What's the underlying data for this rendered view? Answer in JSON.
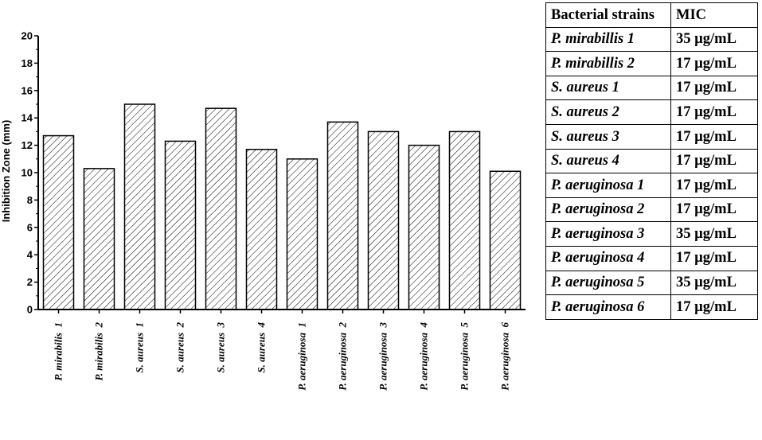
{
  "chart_data": {
    "type": "bar",
    "title": "",
    "xlabel": "",
    "ylabel": "Inhibition Zone (mm)",
    "ylim": [
      0,
      20
    ],
    "yticks": [
      "0",
      "2",
      "4",
      "6",
      "8",
      "10",
      "12",
      "14",
      "16",
      "18",
      "20"
    ],
    "categories": [
      "P. mirabilis  1",
      "P. mirabilis  2",
      "S. aureus  1",
      "S. aureus  2",
      "S. aureus  3",
      "S. aureus  4",
      "P. aeruginosa  1",
      "P. aeruginosa  2",
      "P. aeruginosa  3",
      "P. aeruginosa  4",
      "P. aeruginosa  5",
      "P. aeruginosa  6"
    ],
    "values": [
      12.7,
      10.3,
      15.0,
      12.3,
      14.7,
      11.7,
      11.0,
      13.7,
      13.0,
      12.0,
      13.0,
      10.1
    ],
    "grid": false,
    "legend": "none",
    "bar_fill": "hatched",
    "colors": {
      "bar_stroke": "#000000",
      "hatch": "#000000",
      "background": "#ffffff"
    }
  },
  "mic_table": {
    "headers": [
      "Bacterial strains",
      "MIC"
    ],
    "rows": [
      [
        "P. mirabillis 1",
        "35 µg/mL"
      ],
      [
        "P. mirabillis 2",
        "17 µg/mL"
      ],
      [
        "S. aureus 1",
        "17 µg/mL"
      ],
      [
        "S. aureus 2",
        "17 µg/mL"
      ],
      [
        "S. aureus 3",
        "17 µg/mL"
      ],
      [
        "S. aureus 4",
        "17 µg/mL"
      ],
      [
        "P. aeruginosa 1",
        "17 µg/mL"
      ],
      [
        "P. aeruginosa 2",
        "17 µg/mL"
      ],
      [
        "P. aeruginosa 3",
        "35 µg/mL"
      ],
      [
        "P. aeruginosa 4",
        "17 µg/mL"
      ],
      [
        "P. aeruginosa 5",
        "35 µg/mL"
      ],
      [
        "P. aeruginosa 6",
        "17 µg/mL"
      ]
    ]
  }
}
